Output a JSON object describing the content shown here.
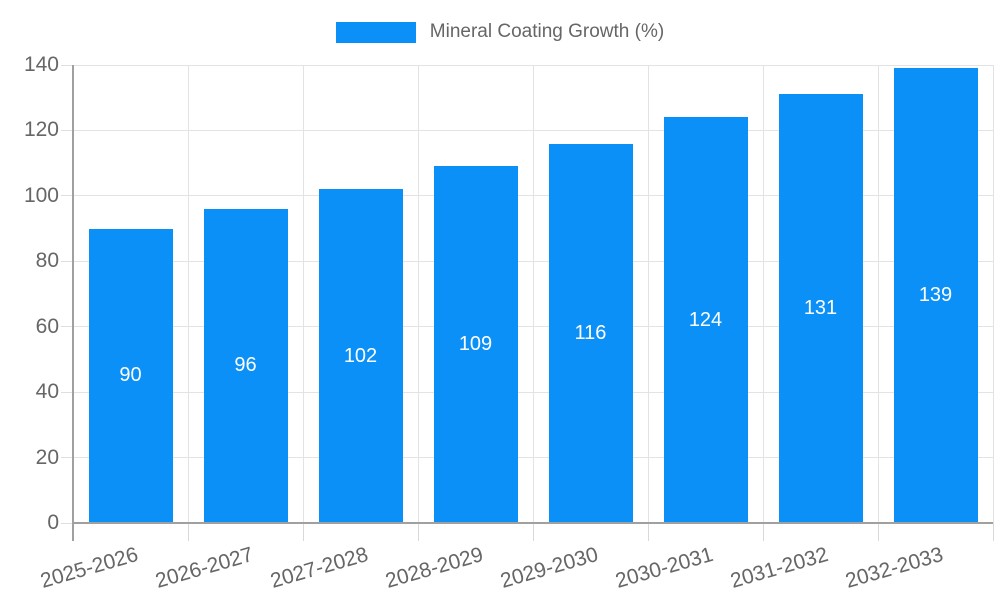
{
  "chart_data": {
    "type": "bar",
    "title": "Mineral Coating Growth (%)",
    "categories": [
      "2025-2026",
      "2026-2027",
      "2027-2028",
      "2028-2029",
      "2029-2030",
      "2030-2031",
      "2031-2032",
      "2032-2033"
    ],
    "values": [
      90,
      96,
      102,
      109,
      116,
      124,
      131,
      139
    ],
    "xlabel": "",
    "ylabel": "",
    "ylim": [
      0,
      140
    ],
    "yticks": [
      0,
      20,
      40,
      60,
      80,
      100,
      120,
      140
    ],
    "grid": true,
    "bar_labels": true,
    "legend_position": "top-center"
  },
  "colors": {
    "bar": "#0b90f8",
    "grid": "#e3e3e3",
    "axis": "#a0a0a0",
    "text": "#666666",
    "value_label": "#ffffff"
  }
}
